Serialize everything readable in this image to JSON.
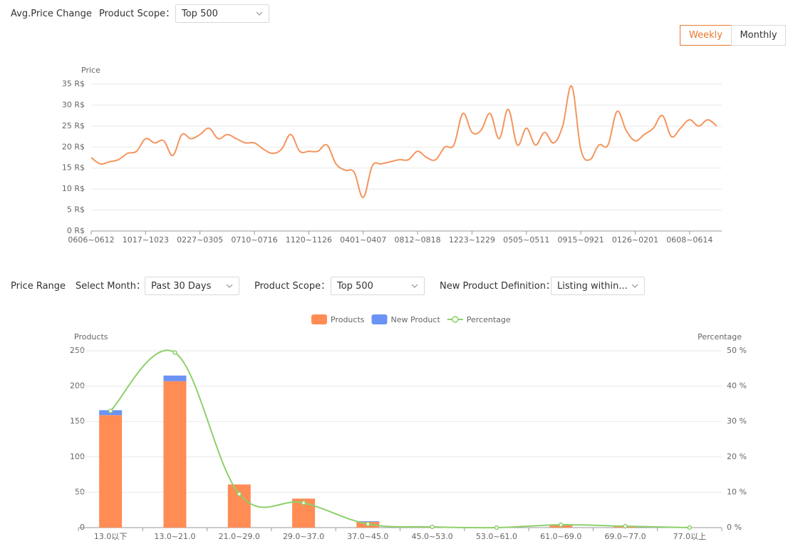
{
  "top_bar": {
    "title": "Avg.Price Change",
    "scope_label": "Product Scope：",
    "scope_value": "Top 500",
    "buttons": [
      "Weekly",
      "Monthly"
    ]
  },
  "range_bar": {
    "title": "Price Range",
    "month_label": "Select Month：",
    "month_value": "Past 30 Days",
    "scope_label": "Product Scope：",
    "scope_value": "Top 500",
    "definition_label": "New Product Definition：",
    "definition_value": "Listing within..."
  },
  "chart_data": [
    {
      "type": "line",
      "y_label": "Price",
      "color": "#f4955e",
      "grid": true,
      "categories": [
        "0606~0612",
        null,
        null,
        null,
        null,
        null,
        "1017~1023",
        null,
        null,
        null,
        null,
        null,
        "0227~0305",
        null,
        null,
        null,
        null,
        null,
        "0710~0716",
        null,
        null,
        null,
        null,
        null,
        "1120~1126",
        null,
        null,
        null,
        null,
        null,
        "0401~0407",
        null,
        null,
        null,
        null,
        null,
        "0812~0818",
        null,
        null,
        null,
        null,
        null,
        "1223~1229",
        null,
        null,
        null,
        null,
        null,
        "0505~0511",
        null,
        null,
        null,
        null,
        null,
        "0915~0921",
        null,
        null,
        null,
        null,
        null,
        "0126~0201",
        null,
        null,
        null,
        null,
        null,
        "0608~0614",
        null,
        null,
        null
      ],
      "values": [
        17.5,
        16,
        16.5,
        17,
        18.5,
        19,
        22,
        21,
        21.5,
        18,
        23,
        22,
        23,
        24.5,
        22,
        23,
        22,
        21,
        21,
        19.5,
        18.5,
        19.5,
        23,
        19,
        19,
        19,
        20.5,
        16,
        14.5,
        14,
        8,
        15.5,
        16,
        16.5,
        17,
        17,
        19,
        17.5,
        17,
        20,
        20.5,
        28,
        23.5,
        24,
        28,
        22,
        29,
        20.5,
        24.5,
        20.5,
        23.5,
        21,
        25,
        34.5,
        19.5,
        17,
        20.5,
        20.5,
        28.5,
        24,
        21.5,
        23,
        24.5,
        27.5,
        22.5,
        24.5,
        26.5,
        25,
        26.5,
        25
      ],
      "ylim": [
        0,
        35
      ],
      "yticks": [
        {
          "value": 0,
          "label": "0 R$"
        },
        {
          "value": 5,
          "label": "5 R$"
        },
        {
          "value": 10,
          "label": "10 R$"
        },
        {
          "value": 15,
          "label": "15 R$"
        },
        {
          "value": 20,
          "label": "20 R$"
        },
        {
          "value": 25,
          "label": "25 R$"
        },
        {
          "value": 30,
          "label": "30 R$"
        },
        {
          "value": 35,
          "label": "35 R$"
        }
      ]
    },
    {
      "type": "bar-line",
      "y_label": "Products",
      "y2_label": "Percentage",
      "grid": true,
      "legend": "top",
      "categories": [
        "13.0以下",
        "13.0~21.0",
        "21.0~29.0",
        "29.0~37.0",
        "37.0~45.0",
        "45.0~53.0",
        "53.0~61.0",
        "61.0~69.0",
        "69.0~77.0",
        "77.0以上"
      ],
      "series": [
        {
          "name": "Products",
          "color": "#ff8c55",
          "values": [
            159,
            207,
            61,
            41,
            8,
            1,
            0,
            3,
            2,
            0
          ]
        },
        {
          "name": "New Product",
          "color": "#6b93f5",
          "values": [
            7,
            8,
            0,
            0,
            1,
            0,
            0,
            0,
            0,
            0
          ]
        },
        {
          "name": "Percentage",
          "color": "#8ed06b",
          "axis": "y2",
          "values": [
            33,
            49.5,
            9.5,
            7,
            1,
            0.2,
            0,
            0.8,
            0.4,
            0
          ]
        }
      ],
      "ylim": [
        0,
        250
      ],
      "yticks": [
        0,
        50,
        100,
        150,
        200,
        250
      ],
      "y2lim": [
        0,
        50
      ],
      "y2ticks": [
        {
          "value": 0,
          "label": "0 %"
        },
        {
          "value": 10,
          "label": "10 %"
        },
        {
          "value": 20,
          "label": "20 %"
        },
        {
          "value": 30,
          "label": "30 %"
        },
        {
          "value": 40,
          "label": "40 %"
        },
        {
          "value": 50,
          "label": "50 %"
        }
      ]
    }
  ]
}
